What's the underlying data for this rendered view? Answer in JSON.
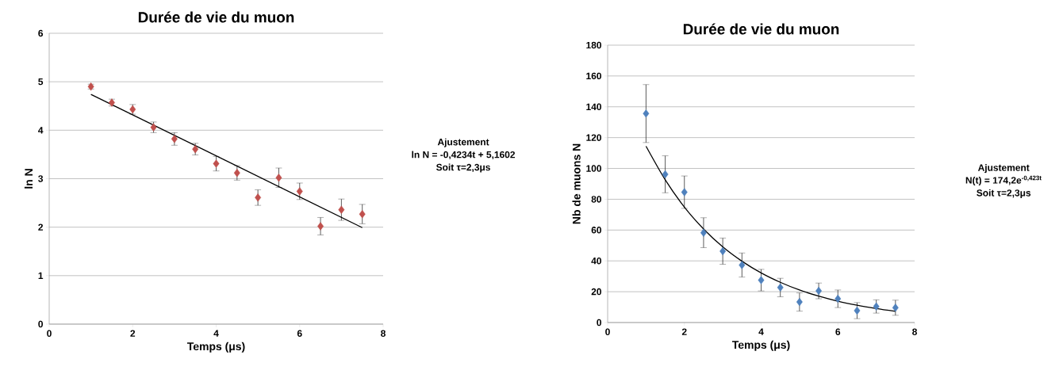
{
  "chart_data": [
    {
      "type": "scatter",
      "title": "Durée de vie du muon",
      "xlabel": "Temps (μs)",
      "ylabel": "ln N",
      "annotations": [
        "Ajustement",
        "ln N = -0,4234t  + 5,1602",
        "Soit τ=2,3μs"
      ],
      "xlim": [
        0,
        8
      ],
      "xticks": [
        0,
        2,
        4,
        6,
        8
      ],
      "ylim": [
        0,
        6
      ],
      "yticks": [
        0,
        1,
        2,
        3,
        4,
        5,
        6
      ],
      "grid": "y",
      "marker": "diamond",
      "x": [
        1,
        1.5,
        2,
        2.5,
        3,
        3.5,
        4,
        4.5,
        5,
        5.5,
        6,
        6.5,
        7,
        7.5
      ],
      "series": [
        {
          "type": "scatter",
          "color": "#c0504d",
          "values": [
            4.9,
            4.57,
            4.43,
            4.06,
            3.82,
            3.61,
            3.31,
            3.12,
            2.61,
            3.02,
            2.74,
            2.02,
            2.36,
            2.27
          ],
          "errors": [
            0.05,
            0.07,
            0.1,
            0.11,
            0.13,
            0.12,
            0.15,
            0.15,
            0.16,
            0.2,
            0.17,
            0.18,
            0.22,
            0.2
          ]
        },
        {
          "type": "line",
          "color": "#000000",
          "marker": "none",
          "line_style": "solid",
          "x": [
            1,
            7.5
          ],
          "values": [
            4.74,
            1.99
          ]
        }
      ]
    },
    {
      "type": "scatter",
      "title": "Durée de vie du muon",
      "xlabel": "Temps (μs)",
      "ylabel": "Nb de muons N",
      "annotations": [
        "Ajustement",
        "N(t) = 174,2e$^{-0,423t}$",
        "Soit τ=2,3μs"
      ],
      "xlim": [
        0,
        8
      ],
      "xticks": [
        0,
        2,
        4,
        6,
        8
      ],
      "ylim": [
        0,
        180
      ],
      "yticks": [
        0,
        20,
        40,
        60,
        80,
        100,
        120,
        140,
        160,
        180
      ],
      "grid": "y",
      "marker": "diamond",
      "x": [
        1,
        1.5,
        2,
        2.5,
        3,
        3.5,
        4,
        4.5,
        5,
        5.5,
        6,
        6.5,
        7,
        7.5
      ],
      "series": [
        {
          "type": "scatter",
          "color": "#4f81bd",
          "values": [
            135.6,
            96.2,
            84.6,
            58.3,
            46.3,
            37.3,
            27.5,
            22.7,
            13.3,
            20.5,
            15.4,
            7.7,
            10.4,
            9.6
          ],
          "errors": [
            18.8,
            12,
            10.5,
            9.7,
            8.5,
            7.8,
            7,
            6,
            5.9,
            5.1,
            5.7,
            5.2,
            4.3,
            4.9
          ]
        },
        {
          "type": "line",
          "color": "#000000",
          "marker": "none",
          "line_style": "solid",
          "x": [
            1,
            1.5,
            2,
            2.5,
            3,
            3.5,
            4,
            4.5,
            5,
            5.5,
            6,
            6.5,
            7,
            7.5
          ],
          "values": [
            114.4,
            92.6,
            74.9,
            60.7,
            49.1,
            39.8,
            32.2,
            26.1,
            21.1,
            17.1,
            13.8,
            11.2,
            9.1,
            7.3
          ]
        }
      ]
    }
  ]
}
